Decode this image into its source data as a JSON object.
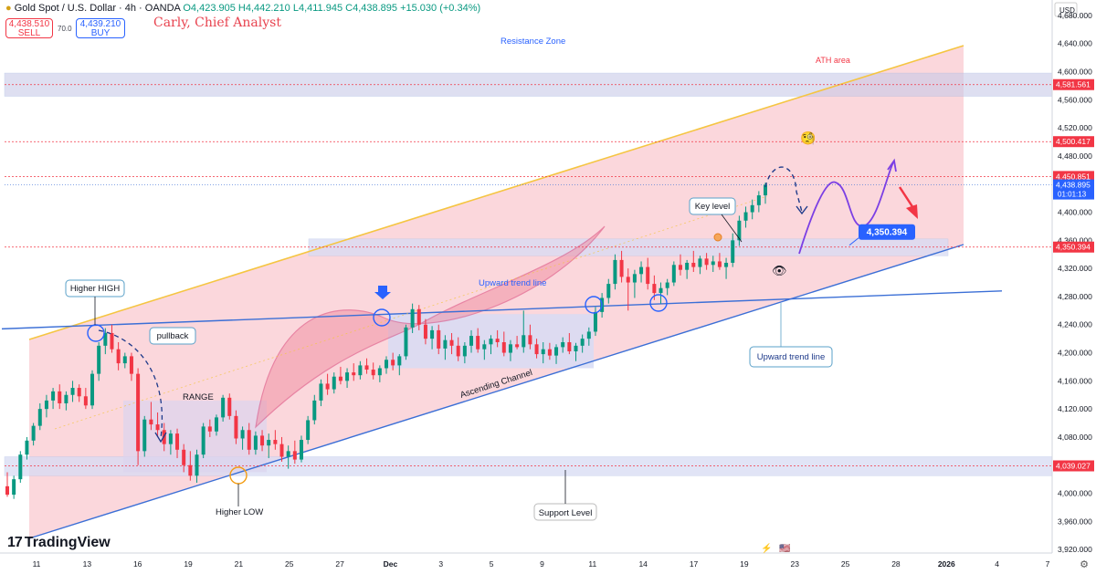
{
  "header": {
    "title": "Gold Spot / U.S. Dollar · 4h · OANDA",
    "ohlc": "O4,423.905 H4,442.210 L4,411.945 C4,438.895 +15.030 (+0.34%)",
    "sell_price": "4,438.510",
    "sell_label": "SELL",
    "spread": "70.0",
    "buy_price": "4,439.210",
    "buy_label": "BUY",
    "author": "Carly, Chief Analyst"
  },
  "branding": {
    "logo_text": "TradingView"
  },
  "colors": {
    "channel_fill": "#f7b6c0",
    "resistance_zone": "#c9cbe8",
    "trend_line": "#3b6fd6",
    "up_candle": "#089981",
    "down_candle": "#f23645",
    "projection": "#7b3fe4",
    "target_arrow": "#f23645"
  },
  "chart_data": {
    "type": "candlestick",
    "symbol": "Gold Spot / U.S. Dollar",
    "timeframe": "4h",
    "currency": "USD",
    "yaxis": {
      "ticks": [
        3920,
        3960,
        4000,
        4040,
        4080,
        4120,
        4160,
        4200,
        4240,
        4280,
        4320,
        4360,
        4400,
        4440,
        4480,
        4520,
        4560,
        4600,
        4640,
        4680
      ],
      "tick_labels": [
        "3,920.000",
        "3,960.000",
        "4,000.000",
        "4,040.000",
        "4,080.000",
        "4,120.000",
        "4,160.000",
        "4,200.000",
        "4,240.000",
        "4,280.000",
        "4,320.000",
        "4,360.000",
        "4,400.000",
        "4,440.000",
        "4,480.000",
        "4,520.000",
        "4,560.000",
        "4,600.000",
        "4,640.000",
        "4,680.000"
      ],
      "ylim": [
        3915,
        4702
      ]
    },
    "xaxis": {
      "tick_labels": [
        "11",
        "13",
        "16",
        "19",
        "21",
        "25",
        "27",
        "Dec",
        "3",
        "5",
        "9",
        "11",
        "14",
        "17",
        "19",
        "23",
        "25",
        "28",
        "2026",
        "4",
        "7"
      ]
    },
    "price_badges": [
      {
        "label": "4,581.561",
        "value": 4581.561,
        "color": "#f23645"
      },
      {
        "label": "4,500.417",
        "value": 4500.417,
        "color": "#f23645"
      },
      {
        "label": "4,450.851",
        "value": 4450.851,
        "color": "#f23645"
      },
      {
        "label": "4,350.394",
        "value": 4350.394,
        "color": "#f23645"
      },
      {
        "label": "4,039.027",
        "value": 4039.027,
        "color": "#f23645"
      }
    ],
    "last_price": {
      "value": 4438.895,
      "label": "4,438.895",
      "countdown": "01:01:13",
      "color": "#2962ff"
    },
    "target_label": "4,350.394",
    "annotations": {
      "resistance_zone": "Resistance Zone",
      "ath_area": "ATH area",
      "higher_high": "Higher HIGH",
      "pullback": "pullback",
      "range": "RANGE",
      "higher_low": "Higher LOW",
      "upward_trend_line_top": "Upward trend line",
      "upward_trend_line_box": "Upward trend line",
      "ascending_channel": "Ascending Channel",
      "support_level": "Support Level",
      "key_level": "Key level"
    },
    "candles": [
      [
        4010,
        4030,
        3995,
        3998
      ],
      [
        3998,
        4025,
        3992,
        4020
      ],
      [
        4020,
        4060,
        4015,
        4055
      ],
      [
        4055,
        4080,
        4048,
        4075
      ],
      [
        4075,
        4100,
        4068,
        4096
      ],
      [
        4096,
        4128,
        4090,
        4120
      ],
      [
        4120,
        4140,
        4108,
        4132
      ],
      [
        4132,
        4150,
        4120,
        4145
      ],
      [
        4145,
        4155,
        4120,
        4128
      ],
      [
        4128,
        4145,
        4118,
        4140
      ],
      [
        4140,
        4160,
        4130,
        4150
      ],
      [
        4150,
        4155,
        4130,
        4138
      ],
      [
        4138,
        4150,
        4120,
        4125
      ],
      [
        4125,
        4175,
        4120,
        4170
      ],
      [
        4170,
        4215,
        4160,
        4210
      ],
      [
        4210,
        4235,
        4198,
        4228
      ],
      [
        4228,
        4240,
        4200,
        4205
      ],
      [
        4205,
        4215,
        4175,
        4185
      ],
      [
        4185,
        4200,
        4178,
        4195
      ],
      [
        4195,
        4200,
        4160,
        4170
      ],
      [
        4170,
        4178,
        4040,
        4060
      ],
      [
        4060,
        4110,
        4052,
        4105
      ],
      [
        4105,
        4130,
        4090,
        4098
      ],
      [
        4098,
        4115,
        4080,
        4090
      ],
      [
        4090,
        4100,
        4060,
        4070
      ],
      [
        4070,
        4090,
        4055,
        4085
      ],
      [
        4085,
        4092,
        4050,
        4062
      ],
      [
        4062,
        4070,
        4030,
        4040
      ],
      [
        4040,
        4060,
        4018,
        4025
      ],
      [
        4025,
        4062,
        4015,
        4055
      ],
      [
        4055,
        4100,
        4050,
        4095
      ],
      [
        4095,
        4105,
        4080,
        4088
      ],
      [
        4088,
        4112,
        4082,
        4108
      ],
      [
        4108,
        4140,
        4102,
        4136
      ],
      [
        4136,
        4142,
        4105,
        4110
      ],
      [
        4110,
        4118,
        4070,
        4078
      ],
      [
        4078,
        4095,
        4062,
        4090
      ],
      [
        4090,
        4100,
        4055,
        4062
      ],
      [
        4062,
        4088,
        4055,
        4082
      ],
      [
        4082,
        4090,
        4060,
        4068
      ],
      [
        4068,
        4085,
        4050,
        4076
      ],
      [
        4076,
        4090,
        4062,
        4070
      ],
      [
        4070,
        4080,
        4045,
        4052
      ],
      [
        4052,
        4068,
        4035,
        4060
      ],
      [
        4060,
        4075,
        4042,
        4048
      ],
      [
        4048,
        4082,
        4044,
        4076
      ],
      [
        4076,
        4110,
        4070,
        4104
      ],
      [
        4104,
        4140,
        4098,
        4132
      ],
      [
        4132,
        4162,
        4124,
        4156
      ],
      [
        4156,
        4170,
        4140,
        4148
      ],
      [
        4148,
        4172,
        4142,
        4166
      ],
      [
        4166,
        4180,
        4155,
        4160
      ],
      [
        4160,
        4178,
        4150,
        4172
      ],
      [
        4172,
        4185,
        4160,
        4168
      ],
      [
        4168,
        4188,
        4162,
        4182
      ],
      [
        4182,
        4192,
        4170,
        4176
      ],
      [
        4176,
        4186,
        4162,
        4168
      ],
      [
        4168,
        4182,
        4158,
        4178
      ],
      [
        4178,
        4195,
        4170,
        4190
      ],
      [
        4190,
        4200,
        4175,
        4182
      ],
      [
        4182,
        4198,
        4168,
        4195
      ],
      [
        4195,
        4240,
        4190,
        4236
      ],
      [
        4236,
        4270,
        4228,
        4262
      ],
      [
        4262,
        4268,
        4232,
        4240
      ],
      [
        4240,
        4248,
        4212,
        4220
      ],
      [
        4220,
        4238,
        4205,
        4232
      ],
      [
        4232,
        4240,
        4198,
        4206
      ],
      [
        4206,
        4225,
        4190,
        4218
      ],
      [
        4218,
        4228,
        4198,
        4210
      ],
      [
        4210,
        4222,
        4188,
        4195
      ],
      [
        4195,
        4215,
        4185,
        4210
      ],
      [
        4210,
        4232,
        4200,
        4224
      ],
      [
        4224,
        4235,
        4200,
        4205
      ],
      [
        4205,
        4218,
        4190,
        4212
      ],
      [
        4212,
        4225,
        4198,
        4220
      ],
      [
        4220,
        4232,
        4208,
        4215
      ],
      [
        4215,
        4230,
        4195,
        4200
      ],
      [
        4200,
        4218,
        4188,
        4212
      ],
      [
        4212,
        4224,
        4205,
        4208
      ],
      [
        4208,
        4260,
        4200,
        4225
      ],
      [
        4225,
        4240,
        4205,
        4212
      ],
      [
        4212,
        4220,
        4192,
        4198
      ],
      [
        4198,
        4215,
        4185,
        4205
      ],
      [
        4205,
        4214,
        4190,
        4196
      ],
      [
        4196,
        4212,
        4184,
        4208
      ],
      [
        4208,
        4222,
        4200,
        4215
      ],
      [
        4215,
        4228,
        4198,
        4202
      ],
      [
        4202,
        4214,
        4188,
        4210
      ],
      [
        4210,
        4226,
        4200,
        4220
      ],
      [
        4220,
        4236,
        4210,
        4230
      ],
      [
        4230,
        4265,
        4224,
        4258
      ],
      [
        4258,
        4285,
        4250,
        4278
      ],
      [
        4278,
        4305,
        4270,
        4298
      ],
      [
        4298,
        4340,
        4290,
        4332
      ],
      [
        4332,
        4345,
        4300,
        4308
      ],
      [
        4308,
        4320,
        4260,
        4300
      ],
      [
        4300,
        4318,
        4278,
        4312
      ],
      [
        4312,
        4330,
        4300,
        4322
      ],
      [
        4322,
        4335,
        4290,
        4298
      ],
      [
        4298,
        4310,
        4275,
        4285
      ],
      [
        4285,
        4300,
        4270,
        4292
      ],
      [
        4292,
        4305,
        4282,
        4300
      ],
      [
        4300,
        4330,
        4295,
        4325
      ],
      [
        4325,
        4340,
        4310,
        4318
      ],
      [
        4318,
        4332,
        4305,
        4328
      ],
      [
        4328,
        4345,
        4315,
        4322
      ],
      [
        4322,
        4338,
        4312,
        4334
      ],
      [
        4334,
        4342,
        4318,
        4325
      ],
      [
        4325,
        4338,
        4315,
        4330
      ],
      [
        4330,
        4342,
        4318,
        4322
      ],
      [
        4322,
        4335,
        4305,
        4328
      ],
      [
        4328,
        4370,
        4322,
        4360
      ],
      [
        4360,
        4395,
        4352,
        4388
      ],
      [
        4388,
        4408,
        4378,
        4400
      ],
      [
        4400,
        4418,
        4390,
        4410
      ],
      [
        4410,
        4430,
        4400,
        4424
      ],
      [
        4424,
        4442,
        4412,
        4439
      ]
    ]
  }
}
